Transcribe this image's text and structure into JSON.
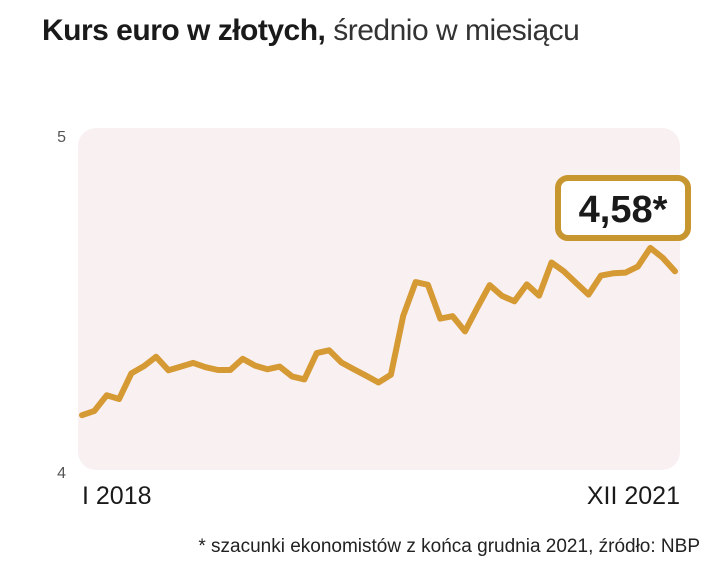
{
  "title": {
    "bold": "Kurs euro w złotych,",
    "light": "średnio w miesiącu"
  },
  "footnote": "* szacunki ekonomistów z końca grudnia 2021, źródło: NBP",
  "chart_data": {
    "type": "line",
    "ylim": [
      4,
      5
    ],
    "y_ticks": [
      "5",
      "4"
    ],
    "x_labels": [
      "I 2018",
      "XII 2021"
    ],
    "grid": false,
    "series": [
      {
        "values": [
          4.162,
          4.175,
          4.221,
          4.21,
          4.286,
          4.307,
          4.335,
          4.295,
          4.306,
          4.317,
          4.304,
          4.296,
          4.296,
          4.329,
          4.309,
          4.298,
          4.306,
          4.277,
          4.268,
          4.346,
          4.354,
          4.318,
          4.298,
          4.279,
          4.259,
          4.282,
          4.456,
          4.556,
          4.548,
          4.448,
          4.455,
          4.41,
          4.48,
          4.547,
          4.515,
          4.499,
          4.549,
          4.516,
          4.614,
          4.588,
          4.553,
          4.519,
          4.575,
          4.582,
          4.584,
          4.602,
          4.657,
          4.628,
          4.588
        ]
      }
    ],
    "callout": {
      "label": "4,58*",
      "value": 4.58
    },
    "colors": {
      "line": "#d69a35",
      "plot_bg": "#f9f0f2",
      "callout_border": "#c8962f",
      "callout_text": "#1a1a1a"
    }
  }
}
